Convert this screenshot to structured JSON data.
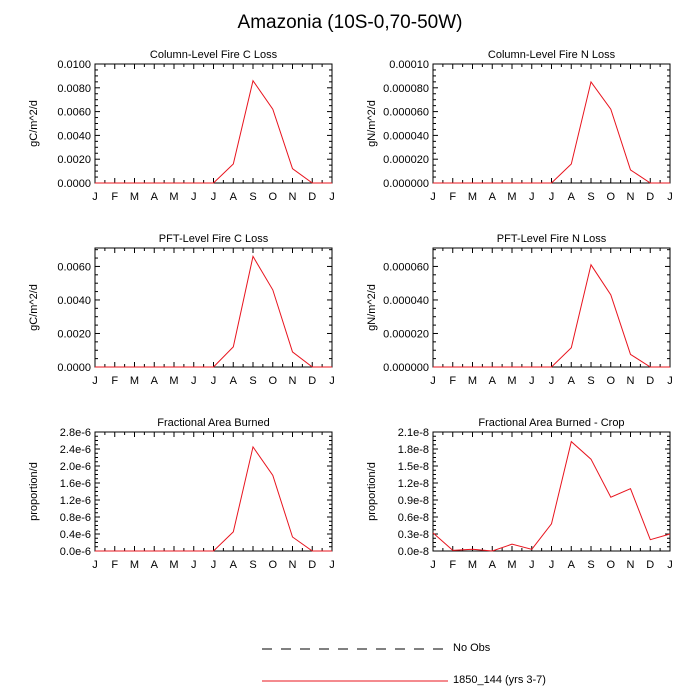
{
  "figure": {
    "title": "Amazonia (10S-0,70-50W)"
  },
  "legend": [
    {
      "label": "No Obs",
      "style": "dashed",
      "color": "#000000"
    },
    {
      "label": "1850_144 (yrs 3-7)",
      "style": "solid",
      "color": "#e8141e"
    }
  ],
  "chart_data": [
    {
      "type": "line",
      "title": "Column-Level Fire C Loss",
      "ylabel": "gC/m^2/d",
      "categories": [
        "J",
        "F",
        "M",
        "A",
        "M",
        "J",
        "J",
        "A",
        "S",
        "O",
        "N",
        "D",
        "J"
      ],
      "ylim": [
        0,
        0.01
      ],
      "yticks": [
        "0.0000",
        "0.0020",
        "0.0040",
        "0.0060",
        "0.0080",
        "0.0100"
      ],
      "series": [
        {
          "name": "1850_144 (yrs 3-7)",
          "color": "#e8141e",
          "values": [
            0,
            0,
            0,
            0,
            0,
            0,
            0,
            0.0016,
            0.0086,
            0.0062,
            0.0012,
            0,
            0
          ]
        }
      ]
    },
    {
      "type": "line",
      "title": "Column-Level Fire N Loss",
      "ylabel": "gN/m^2/d",
      "categories": [
        "J",
        "F",
        "M",
        "A",
        "M",
        "J",
        "J",
        "A",
        "S",
        "O",
        "N",
        "D",
        "J"
      ],
      "ylim": [
        0,
        0.0001
      ],
      "yticks": [
        "0.000000",
        "0.000020",
        "0.000040",
        "0.000060",
        "0.000080",
        "0.00010"
      ],
      "series": [
        {
          "name": "1850_144 (yrs 3-7)",
          "color": "#e8141e",
          "values": [
            0,
            0,
            0,
            0,
            0,
            0,
            0,
            1.6e-05,
            8.5e-05,
            6.2e-05,
            1.1e-05,
            0,
            0
          ]
        }
      ]
    },
    {
      "type": "line",
      "title": "PFT-Level Fire C Loss",
      "ylabel": "gC/m^2/d",
      "categories": [
        "J",
        "F",
        "M",
        "A",
        "M",
        "J",
        "J",
        "A",
        "S",
        "O",
        "N",
        "D",
        "J"
      ],
      "ylim": [
        0,
        0.0071
      ],
      "yticks": [
        "0.0000",
        "0.0020",
        "0.0040",
        "0.0060"
      ],
      "series": [
        {
          "name": "1850_144 (yrs 3-7)",
          "color": "#e8141e",
          "values": [
            0,
            0,
            0,
            0,
            0,
            0,
            0,
            0.0012,
            0.0066,
            0.0046,
            0.0009,
            0,
            0
          ]
        }
      ]
    },
    {
      "type": "line",
      "title": "PFT-Level Fire N Loss",
      "ylabel": "gN/m^2/d",
      "categories": [
        "J",
        "F",
        "M",
        "A",
        "M",
        "J",
        "J",
        "A",
        "S",
        "O",
        "N",
        "D",
        "J"
      ],
      "ylim": [
        0,
        7.1e-05
      ],
      "yticks": [
        "0.000000",
        "0.000020",
        "0.000040",
        "0.000060"
      ],
      "series": [
        {
          "name": "1850_144 (yrs 3-7)",
          "color": "#e8141e",
          "values": [
            0,
            0,
            0,
            0,
            0,
            0,
            0,
            1.15e-05,
            6.1e-05,
            4.3e-05,
            7.5e-06,
            0,
            0
          ]
        }
      ]
    },
    {
      "type": "line",
      "title": "Fractional Area Burned",
      "ylabel": "proportion/d",
      "categories": [
        "J",
        "F",
        "M",
        "A",
        "M",
        "J",
        "J",
        "A",
        "S",
        "O",
        "N",
        "D",
        "J"
      ],
      "ylim": [
        0,
        2.8e-06
      ],
      "yticks": [
        "0.0e-6",
        "0.4e-6",
        "0.8e-6",
        "1.2e-6",
        "1.6e-6",
        "2.0e-6",
        "2.4e-6",
        "2.8e-6"
      ],
      "series": [
        {
          "name": "1850_144 (yrs 3-7)",
          "color": "#e8141e",
          "values": [
            0,
            0,
            0,
            0,
            0,
            0,
            0,
            4.5e-07,
            2.45e-06,
            1.78e-06,
            3.3e-07,
            0,
            0
          ]
        }
      ]
    },
    {
      "type": "line",
      "title": "Fractional Area Burned - Crop",
      "ylabel": "proportion/d",
      "categories": [
        "J",
        "F",
        "M",
        "A",
        "M",
        "J",
        "J",
        "A",
        "S",
        "O",
        "N",
        "D",
        "J"
      ],
      "ylim": [
        0,
        2.1e-08
      ],
      "yticks": [
        "0.0e-8",
        "0.3e-8",
        "0.6e-8",
        "0.9e-8",
        "1.2e-8",
        "1.5e-8",
        "1.8e-8",
        "2.1e-8"
      ],
      "series": [
        {
          "name": "1850_144 (yrs 3-7)",
          "color": "#e8141e",
          "values": [
            3.2e-09,
            1e-10,
            3e-10,
            0,
            1.2e-09,
            3e-10,
            4.8e-09,
            1.93e-08,
            1.62e-08,
            9.5e-09,
            1.1e-08,
            2e-09,
            3e-09
          ]
        }
      ]
    }
  ]
}
